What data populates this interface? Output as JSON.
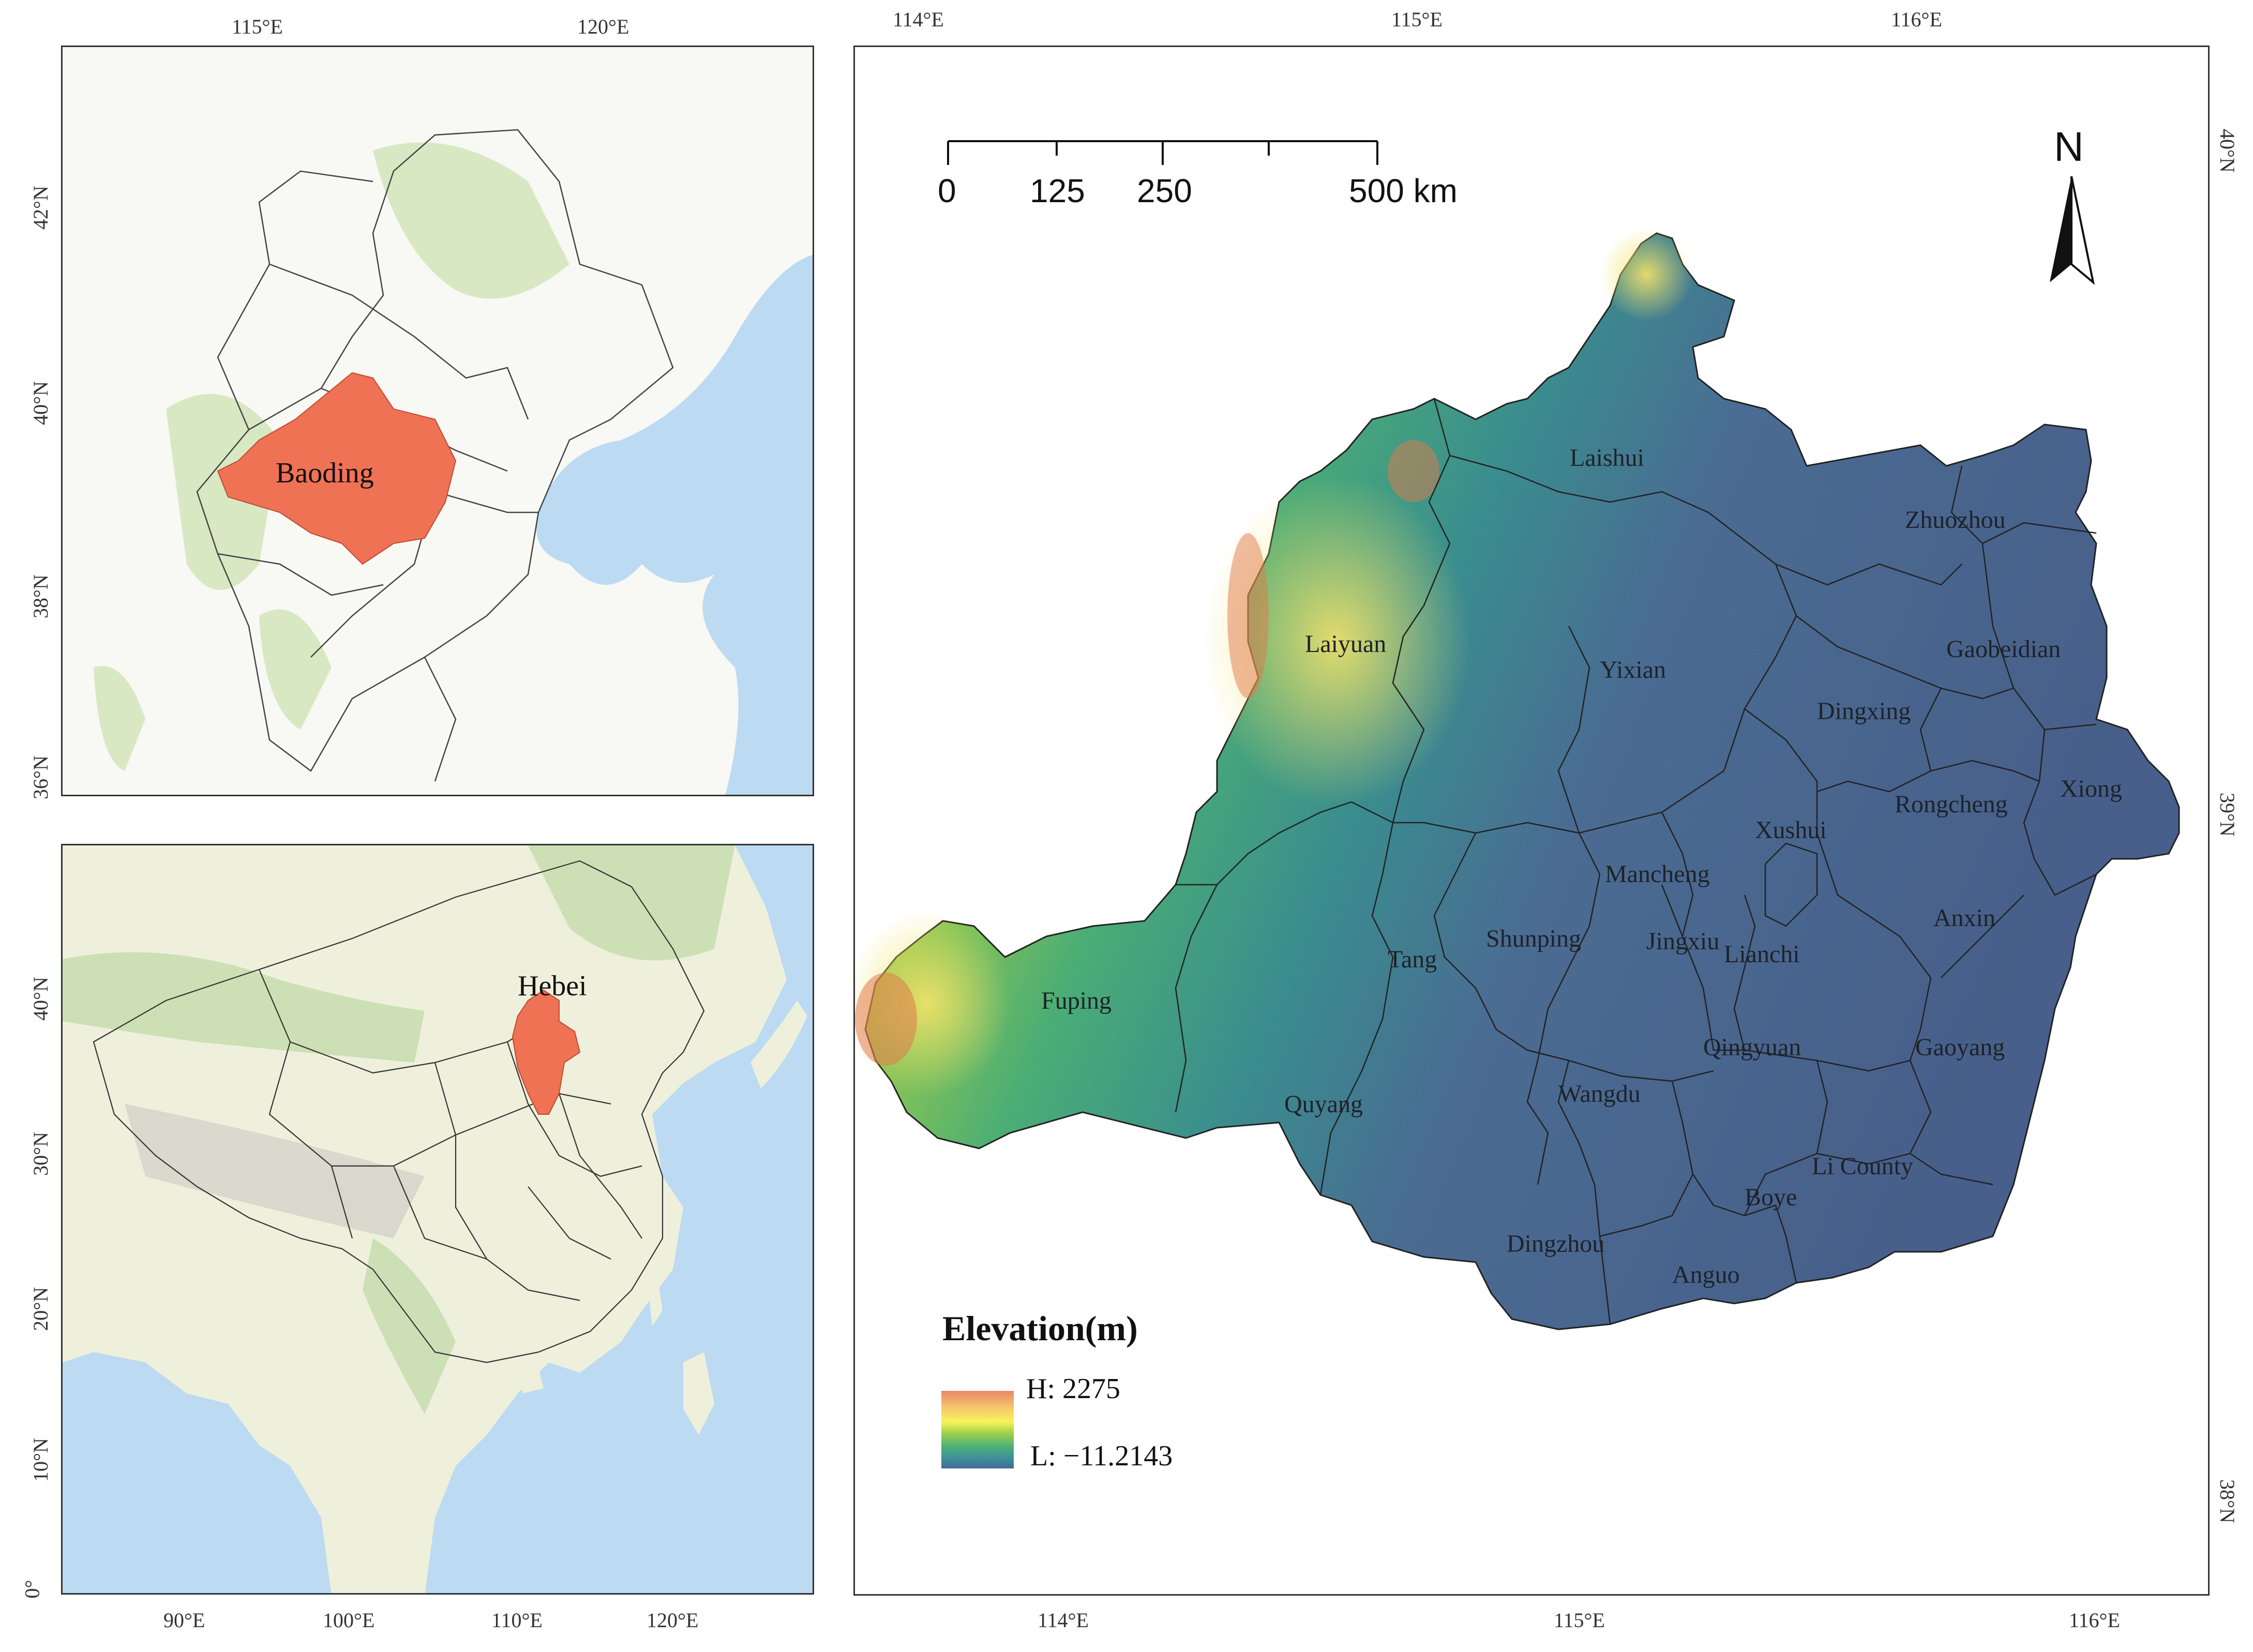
{
  "inset_top": {
    "x_ticks": [
      "115°E",
      "120°E"
    ],
    "y_ticks": [
      "42°N",
      "40°N",
      "38°N",
      "36°N"
    ],
    "highlight_label": "Baoding",
    "highlight_color": "#f07254"
  },
  "inset_bottom": {
    "x_ticks": [
      "90°E",
      "100°E",
      "110°E",
      "120°E"
    ],
    "y_ticks": [
      "40°N",
      "30°N",
      "20°N",
      "10°N",
      "0°"
    ],
    "highlight_label": "Hebei",
    "highlight_color": "#f07254"
  },
  "main_map": {
    "top_x_ticks": [
      "114°E",
      "115°E",
      "116°E"
    ],
    "bottom_x_ticks": [
      "114°E",
      "115°E",
      "116°E"
    ],
    "right_y_ticks": [
      "40°N",
      "39°N",
      "38°N"
    ],
    "scale_bar": {
      "labels": [
        "0",
        "125",
        "250",
        "500 km"
      ]
    },
    "north_arrow_label": "N",
    "counties": [
      "Laishui",
      "Zhuozhou",
      "Laiyuan",
      "Yixian",
      "Gaobeidian",
      "Dingxing",
      "Xiong",
      "Rongcheng",
      "Xushui",
      "Mancheng",
      "Anxin",
      "Shunping",
      "Jingxiu",
      "Lianchi",
      "Tang",
      "Fuping",
      "Qingyuan",
      "Gaoyang",
      "Quyang",
      "Wangdu",
      "Li County",
      "Boye",
      "Dingzhou",
      "Anguo"
    ],
    "legend": {
      "title": "Elevation(m)",
      "high_label": "H: 2275",
      "low_label": "L:  −11.2143"
    }
  },
  "colors": {
    "lowland": "#4a6b92",
    "highland": "#e98a5a",
    "water": "#bcdaf2",
    "land": "#f7f7f2"
  }
}
